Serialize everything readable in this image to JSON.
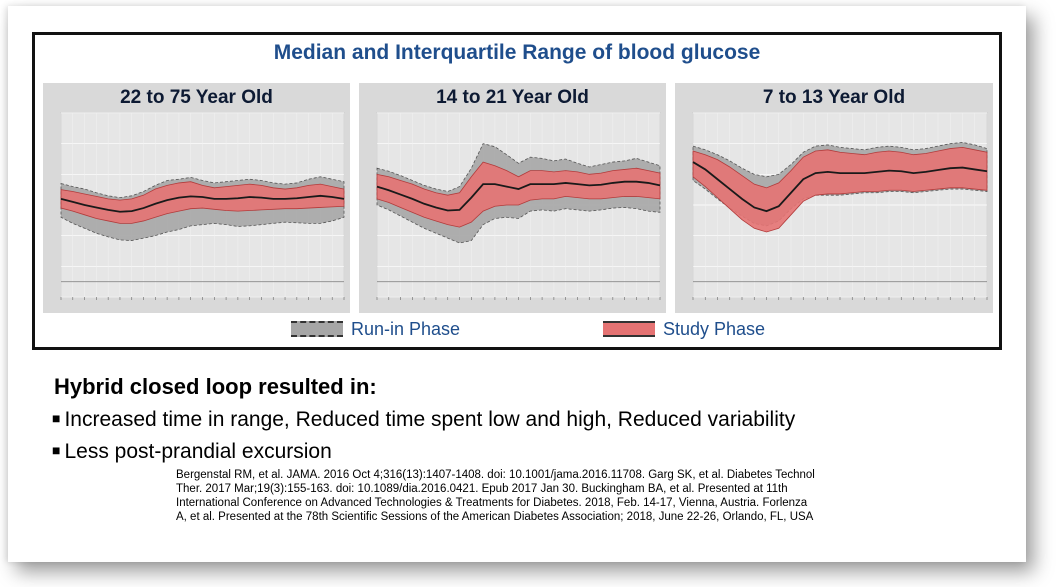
{
  "figure": {
    "title": "Median and Interquartile Range of blood glucose",
    "legend": {
      "runin_label": "Run-in Phase",
      "study_label": "Study Phase"
    }
  },
  "colors": {
    "title": "#1f4e8c",
    "runin_band": "#a6a6a6",
    "study_band": "#e57373",
    "median": "#1a1a1a",
    "panel_bg": "#d9d9d9"
  },
  "chart_data": [
    {
      "type": "area",
      "title": "22 to 75 Year Old",
      "x": [
        0,
        1,
        2,
        3,
        4,
        5,
        6,
        7,
        8,
        9,
        10,
        11,
        12,
        13,
        14,
        15,
        16,
        17,
        18,
        19,
        20,
        21,
        22,
        23,
        24
      ],
      "ylim": [
        0,
        300
      ],
      "series": [
        {
          "name": "Run-in Phase",
          "low": [
            130,
            120,
            112,
            104,
            98,
            93,
            92,
            96,
            100,
            106,
            110,
            116,
            118,
            120,
            118,
            115,
            116,
            118,
            120,
            122,
            121,
            120,
            120,
            124,
            130
          ],
          "high": [
            185,
            180,
            176,
            170,
            165,
            162,
            165,
            172,
            182,
            190,
            192,
            195,
            190,
            186,
            188,
            190,
            192,
            190,
            186,
            184,
            186,
            192,
            196,
            192,
            188
          ]
        },
        {
          "name": "Study Phase",
          "low": [
            145,
            140,
            134,
            128,
            124,
            120,
            120,
            124,
            130,
            136,
            140,
            144,
            145,
            143,
            141,
            140,
            141,
            142,
            143,
            144,
            144,
            145,
            146,
            147,
            148
          ],
          "high": [
            175,
            172,
            168,
            164,
            160,
            158,
            160,
            166,
            176,
            182,
            186,
            188,
            182,
            178,
            180,
            182,
            184,
            182,
            178,
            176,
            178,
            182,
            184,
            180,
            176
          ]
        },
        {
          "name": "median",
          "values": [
            160,
            155,
            150,
            146,
            142,
            139,
            140,
            145,
            152,
            158,
            162,
            164,
            163,
            160,
            160,
            161,
            163,
            162,
            160,
            160,
            161,
            163,
            165,
            163,
            160
          ]
        }
      ]
    },
    {
      "type": "area",
      "title": "14 to 21 Year Old",
      "x": [
        0,
        1,
        2,
        3,
        4,
        5,
        6,
        7,
        8,
        9,
        10,
        11,
        12,
        13,
        14,
        15,
        16,
        17,
        18,
        19,
        20,
        21,
        22,
        23,
        24
      ],
      "ylim": [
        0,
        300
      ],
      "series": [
        {
          "name": "Run-in Phase",
          "low": [
            150,
            142,
            132,
            122,
            112,
            104,
            96,
            88,
            92,
            118,
            128,
            130,
            128,
            140,
            142,
            140,
            144,
            142,
            140,
            142,
            145,
            146,
            144,
            140,
            138
          ],
          "high": [
            210,
            205,
            198,
            190,
            182,
            176,
            172,
            180,
            210,
            250,
            245,
            232,
            218,
            228,
            226,
            222,
            225,
            218,
            212,
            216,
            220,
            222,
            226,
            220,
            214
          ]
        },
        {
          "name": "Study Phase",
          "low": [
            160,
            154,
            146,
            138,
            130,
            124,
            118,
            114,
            122,
            140,
            148,
            150,
            150,
            158,
            160,
            160,
            164,
            162,
            160,
            160,
            162,
            164,
            164,
            162,
            160
          ],
          "high": [
            200,
            196,
            190,
            184,
            176,
            170,
            166,
            170,
            196,
            220,
            214,
            206,
            196,
            206,
            206,
            204,
            206,
            204,
            200,
            202,
            206,
            208,
            210,
            206,
            202
          ]
        },
        {
          "name": "median",
          "values": [
            180,
            174,
            167,
            160,
            152,
            146,
            141,
            142,
            162,
            184,
            184,
            180,
            176,
            184,
            184,
            184,
            186,
            184,
            182,
            183,
            186,
            188,
            188,
            186,
            182
          ]
        }
      ]
    },
    {
      "type": "area",
      "title": "7 to 13 Year Old",
      "x": [
        0,
        1,
        2,
        3,
        4,
        5,
        6,
        7,
        8,
        9,
        10,
        11,
        12,
        13,
        14,
        15,
        16,
        17,
        18,
        19,
        20,
        21,
        22,
        23,
        24
      ],
      "ylim": [
        0,
        300
      ],
      "series": [
        {
          "name": "Run-in Phase",
          "low": [
            190,
            176,
            160,
            145,
            132,
            120,
            116,
            124,
            144,
            160,
            166,
            166,
            166,
            168,
            170,
            170,
            172,
            172,
            170,
            172,
            174,
            176,
            176,
            174,
            172
          ],
          "high": [
            246,
            240,
            232,
            222,
            210,
            200,
            196,
            200,
            216,
            236,
            246,
            248,
            244,
            242,
            240,
            244,
            246,
            244,
            240,
            242,
            246,
            250,
            252,
            248,
            242
          ]
        },
        {
          "name": "Study Phase",
          "low": [
            196,
            180,
            162,
            144,
            126,
            112,
            106,
            112,
            134,
            156,
            166,
            168,
            168,
            170,
            172,
            172,
            174,
            174,
            172,
            174,
            176,
            178,
            178,
            176,
            174
          ],
          "high": [
            238,
            232,
            224,
            212,
            198,
            184,
            178,
            186,
            206,
            228,
            238,
            240,
            236,
            234,
            232,
            236,
            238,
            236,
            232,
            234,
            238,
            242,
            244,
            240,
            236
          ]
        },
        {
          "name": "median",
          "values": [
            220,
            208,
            192,
            176,
            160,
            146,
            140,
            148,
            170,
            192,
            202,
            204,
            202,
            202,
            202,
            204,
            206,
            205,
            202,
            204,
            207,
            210,
            211,
            208,
            205
          ]
        }
      ]
    }
  ],
  "text": {
    "heading": "Hybrid closed loop resulted in:",
    "bullet_symbol": "■",
    "bullet1": "Increased time in range, Reduced time spent low and high, Reduced variability",
    "bullet2": "Less post-prandial excursion",
    "references": [
      "Bergenstal RM, et al. JAMA. 2016 Oct 4;316(13):1407-1408. doi: 10.1001/jama.2016.11708. Garg SK, et al. Diabetes Technol",
      "Ther. 2017 Mar;19(3):155-163. doi: 10.1089/dia.2016.0421. Epub 2017 Jan 30. Buckingham BA, et al.  Presented at 11th",
      "International Conference on Advanced Technologies & Treatments for Diabetes. 2018, Feb. 14-17, Vienna, Austria. Forlenza",
      "A, et al. Presented at the 78th Scientific Sessions of the American Diabetes Association; 2018, June 22-26, Orlando, FL, USA"
    ]
  }
}
